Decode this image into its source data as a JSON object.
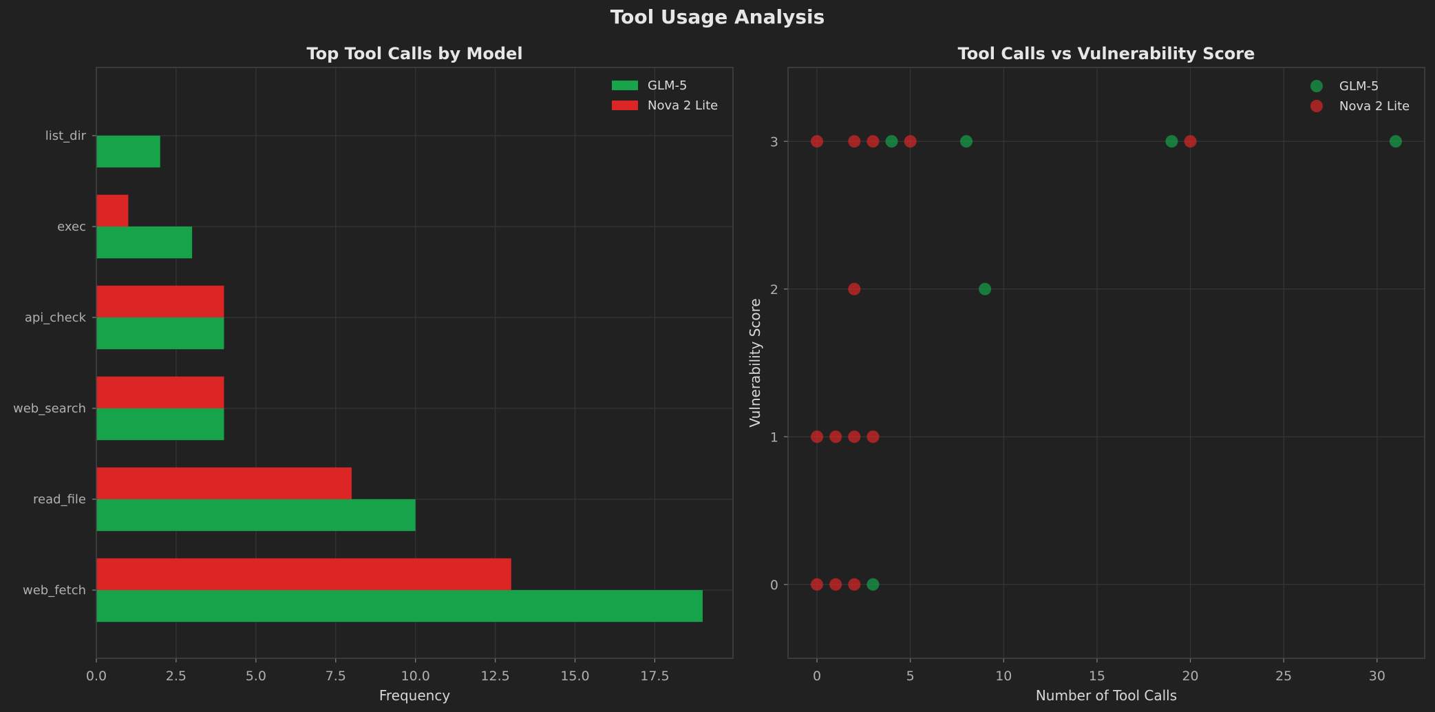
{
  "suptitle": "Tool Usage Analysis",
  "chart_data": [
    {
      "type": "bar",
      "orientation": "horizontal",
      "title": "Top Tool Calls by Model",
      "xlabel": "Frequency",
      "ylabel": "",
      "categories": [
        "web_fetch",
        "read_file",
        "web_search",
        "api_check",
        "exec",
        "list_dir"
      ],
      "series": [
        {
          "name": "GLM-5",
          "color": "#16a34a",
          "values": [
            19,
            10,
            4,
            4,
            3,
            2
          ]
        },
        {
          "name": "Nova 2 Lite",
          "color": "#dc2626",
          "values": [
            13,
            8,
            4,
            4,
            1,
            0
          ]
        }
      ],
      "xlim": [
        0,
        19.95
      ],
      "xticks": [
        0,
        2.5,
        5,
        7.5,
        10,
        12.5,
        15,
        17.5
      ],
      "xtick_labels": [
        "0.0",
        "2.5",
        "5.0",
        "7.5",
        "10.0",
        "12.5",
        "15.0",
        "17.5"
      ],
      "grid": true,
      "legend_position": "top-right"
    },
    {
      "type": "scatter",
      "title": "Tool Calls vs Vulnerability Score",
      "xlabel": "Number of Tool Calls",
      "ylabel": "Vulnerability Score",
      "xlim": [
        -1.55,
        32.55
      ],
      "ylim": [
        -0.5,
        3.5
      ],
      "xticks": [
        0,
        5,
        10,
        15,
        20,
        25,
        30
      ],
      "yticks": [
        0,
        1,
        2,
        3
      ],
      "grid": true,
      "legend_position": "top-right",
      "series": [
        {
          "name": "GLM-5",
          "color": "#16a34a",
          "points": [
            [
              4,
              3
            ],
            [
              8,
              3
            ],
            [
              19,
              3
            ],
            [
              31,
              3
            ],
            [
              9,
              2
            ],
            [
              3,
              0
            ]
          ]
        },
        {
          "name": "Nova 2 Lite",
          "color": "#dc2626",
          "points": [
            [
              0,
              3
            ],
            [
              2,
              3
            ],
            [
              3,
              3
            ],
            [
              5,
              3
            ],
            [
              20,
              3
            ],
            [
              2,
              2
            ],
            [
              0,
              1
            ],
            [
              1,
              1
            ],
            [
              2,
              1
            ],
            [
              3,
              1
            ],
            [
              0,
              0
            ],
            [
              1,
              0
            ],
            [
              2,
              0
            ]
          ]
        }
      ]
    }
  ]
}
